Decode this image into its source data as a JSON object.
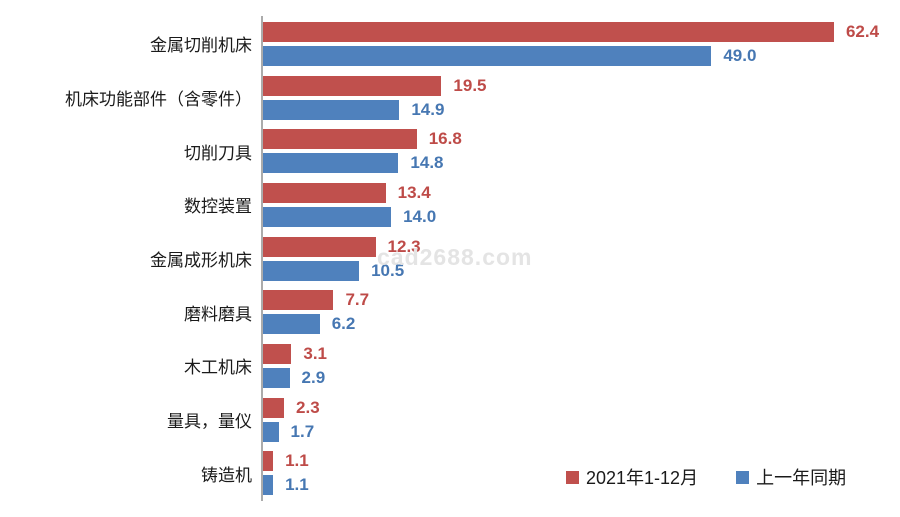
{
  "watermark": "cad2688.com",
  "colors": {
    "series_2021": "#c0504d",
    "series_prev": "#4f81bd",
    "value_label_2021": "#be4b48",
    "value_label_prev": "#4677b2",
    "axis": "#ababab",
    "category_text": "#1a1a1a"
  },
  "chart_data": {
    "type": "bar",
    "orientation": "horizontal",
    "title": "",
    "xlabel": "",
    "ylabel": "",
    "xlim": [
      0,
      67
    ],
    "grid": false,
    "legend_position": "bottom-right",
    "value_labels": true,
    "value_format": "one-decimal",
    "categories": [
      "金属切削机床",
      "机床功能部件（含零件）",
      "切削刀具",
      "数控装置",
      "金属成形机床",
      "磨料磨具",
      "木工机床",
      "量具，量仪",
      "铸造机"
    ],
    "series": [
      {
        "name": "2021年1-12月",
        "color": "#c0504d",
        "label_color": "#be4b48",
        "values": [
          62.4,
          19.5,
          16.8,
          13.4,
          12.3,
          7.7,
          3.1,
          2.3,
          1.1
        ]
      },
      {
        "name": "上一年同期",
        "color": "#4f81bd",
        "label_color": "#4677b2",
        "values": [
          49.0,
          14.9,
          14.8,
          14.0,
          10.5,
          6.2,
          2.9,
          1.7,
          1.1
        ]
      }
    ]
  }
}
